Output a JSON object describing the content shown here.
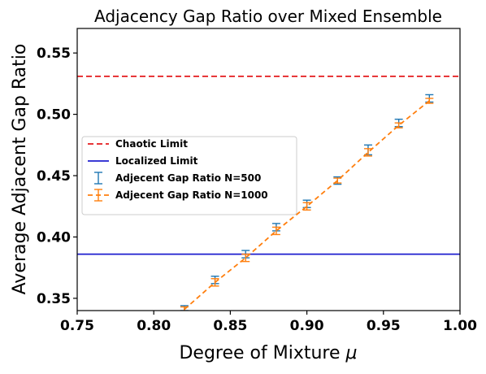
{
  "chart_data": {
    "type": "line",
    "title": "Adjacency Gap Ratio over Mixed Ensemble",
    "xlabel": "Degree of Mixture",
    "xlabel_symbol": "μ",
    "ylabel": "Average Adjacent Gap Ratio",
    "xlim": [
      0.75,
      1.0
    ],
    "ylim": [
      0.34,
      0.57
    ],
    "xticks": [
      "0.75",
      "0.80",
      "0.85",
      "0.90",
      "0.95",
      "1.00"
    ],
    "yticks": [
      "0.35",
      "0.40",
      "0.45",
      "0.50",
      "0.55"
    ],
    "legend_position": "center-left",
    "reference_lines": [
      {
        "name": "Chaotic Limit",
        "y": 0.531,
        "color": "#e41a1c",
        "style": "dashed"
      },
      {
        "name": "Localized Limit",
        "y": 0.386,
        "color": "#1f1fcf",
        "style": "solid"
      }
    ],
    "series": [
      {
        "name": "Adjecent Gap Ratio N=500",
        "color": "#1f77b4",
        "style": "errorbar",
        "x": [
          0.82,
          0.84,
          0.86,
          0.88,
          0.9,
          0.92,
          0.94,
          0.96,
          0.98
        ],
        "y": [
          0.342,
          0.365,
          0.386,
          0.408,
          0.427,
          0.446,
          0.471,
          0.493,
          0.513
        ],
        "err": [
          0.002,
          0.003,
          0.003,
          0.003,
          0.003,
          0.003,
          0.004,
          0.003,
          0.003
        ]
      },
      {
        "name": "Adjecent Gap Ratio N=1000",
        "color": "#ff7f0e",
        "style": "dashed-errorbar",
        "x": [
          0.82,
          0.84,
          0.86,
          0.88,
          0.9,
          0.92,
          0.94,
          0.96,
          0.98
        ],
        "y": [
          0.341,
          0.363,
          0.383,
          0.405,
          0.425,
          0.446,
          0.469,
          0.491,
          0.511
        ],
        "err": [
          0.002,
          0.003,
          0.003,
          0.003,
          0.003,
          0.002,
          0.003,
          0.002,
          0.002
        ]
      }
    ]
  }
}
